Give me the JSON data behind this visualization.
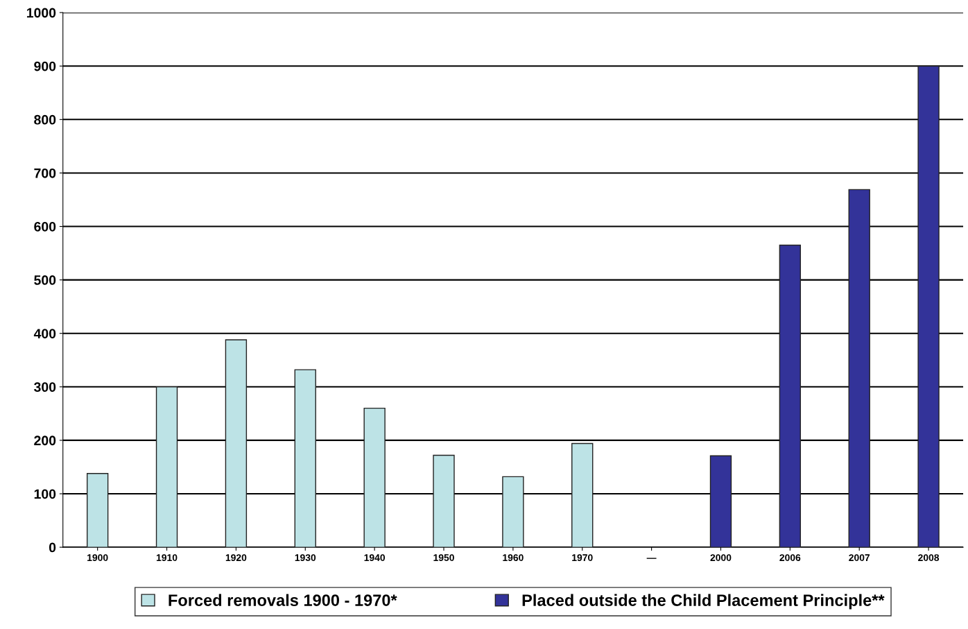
{
  "chart_data": {
    "type": "bar",
    "categories": [
      "1900",
      "1910",
      "1920",
      "1930",
      "1940",
      "1950",
      "1960",
      "1970",
      "—",
      "2000",
      "2006",
      "2007",
      "2008"
    ],
    "series": [
      {
        "name": "Forced removals 1900 - 1970*",
        "color": "#bde3e6",
        "values": [
          138,
          300,
          388,
          332,
          260,
          172,
          132,
          194,
          null,
          null,
          null,
          null,
          null
        ]
      },
      {
        "name": "Placed outside the Child Placement Principle**",
        "color": "#333399",
        "values": [
          null,
          null,
          null,
          null,
          null,
          null,
          null,
          null,
          null,
          171,
          565,
          669,
          900
        ]
      }
    ],
    "ylim": [
      0,
      1000
    ],
    "yticks": [
      0,
      100,
      200,
      300,
      400,
      500,
      600,
      700,
      800,
      900,
      1000
    ],
    "grid": "y",
    "legend": "bottom"
  }
}
